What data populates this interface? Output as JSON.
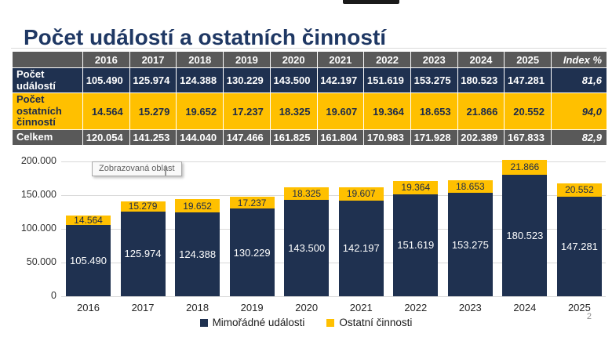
{
  "slide": {
    "title": "Počet událostí a ostatních činností",
    "page_number": "2"
  },
  "tooltip": {
    "text": "Zobrazovaná oblast"
  },
  "table": {
    "columns": [
      "",
      "2016",
      "2017",
      "2018",
      "2019",
      "2020",
      "2021",
      "2022",
      "2023",
      "2024",
      "2025",
      "Index %"
    ],
    "rows": [
      {
        "label": "Počet událostí",
        "values": [
          "105.490",
          "125.974",
          "124.388",
          "130.229",
          "143.500",
          "142.197",
          "151.619",
          "153.275",
          "180.523",
          "147.281"
        ],
        "index": "81,6",
        "style": "navy"
      },
      {
        "label": "Počet ostatních činností",
        "values": [
          "14.564",
          "15.279",
          "19.652",
          "17.237",
          "18.325",
          "19.607",
          "19.364",
          "18.653",
          "21.866",
          "20.552"
        ],
        "index": "94,0",
        "style": "gold"
      },
      {
        "label": "Celkem",
        "values": [
          "120.054",
          "141.253",
          "144.040",
          "147.466",
          "161.825",
          "161.804",
          "170.983",
          "171.928",
          "202.389",
          "167.833"
        ],
        "index": "82,9",
        "style": "gray"
      }
    ]
  },
  "chart_data": {
    "type": "bar",
    "stacked": true,
    "title": "",
    "categories": [
      "2016",
      "2017",
      "2018",
      "2019",
      "2020",
      "2021",
      "2022",
      "2023",
      "2024",
      "2025"
    ],
    "series": [
      {
        "name": "Mimořádné události",
        "color": "#1f3150",
        "label_color": "#ffffff",
        "values": [
          105490,
          125974,
          124388,
          130229,
          143500,
          142197,
          151619,
          153275,
          180523,
          147281
        ],
        "labels": [
          "105.490",
          "125.974",
          "124.388",
          "130.229",
          "143.500",
          "142.197",
          "151.619",
          "153.275",
          "180.523",
          "147.281"
        ]
      },
      {
        "name": "Ostatní činnosti",
        "color": "#ffc000",
        "label_color": "#1c2a4a",
        "values": [
          14564,
          15279,
          19652,
          17237,
          18325,
          19607,
          19364,
          18653,
          21866,
          20552
        ],
        "labels": [
          "14.564",
          "15.279",
          "19.652",
          "17.237",
          "18.325",
          "19.607",
          "19.364",
          "18.653",
          "21.866",
          "20.552"
        ]
      }
    ],
    "totals": [
      120054,
      141253,
      144040,
      147466,
      161825,
      161804,
      170983,
      171928,
      202389,
      167833
    ],
    "ylim": [
      0,
      200000
    ],
    "yticks": [
      {
        "value": 200000,
        "label": "200.000"
      },
      {
        "value": 150000,
        "label": "150.000"
      },
      {
        "value": 100000,
        "label": "100.000"
      },
      {
        "value": 50000,
        "label": "50.000"
      },
      {
        "value": 0,
        "label": "0"
      }
    ],
    "grid": true,
    "legend_position": "bottom"
  },
  "colors": {
    "navy": "#1f3150",
    "gold": "#ffc000",
    "gray": "#595959",
    "title_navy": "#1f3864",
    "grid": "#d9d9d9"
  }
}
